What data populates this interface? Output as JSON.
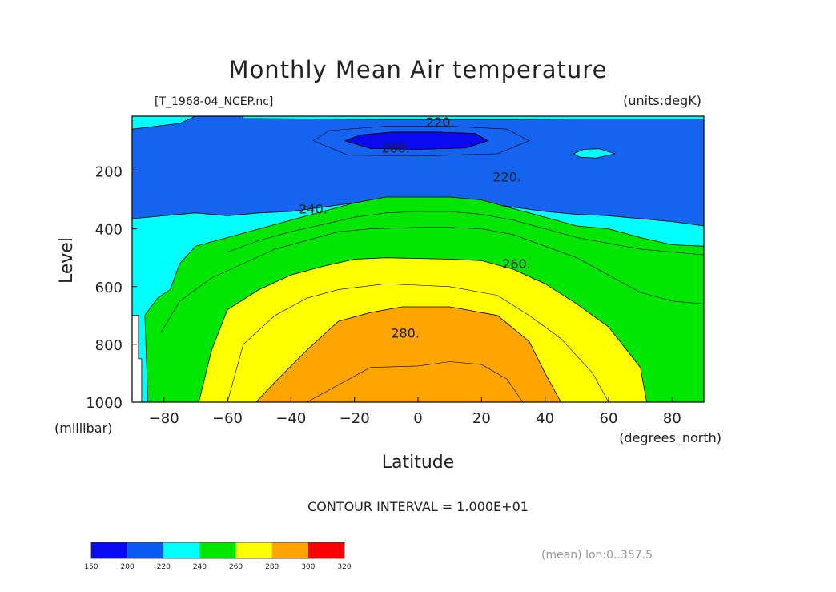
{
  "chart_data": {
    "type": "contour",
    "title": "Monthly Mean Air temperature",
    "file_label": "[T_1968-04_NCEP.nc]",
    "units_label": "(units:degK)",
    "xlabel": "Latitude",
    "x_unit_label": "(degrees_north)",
    "ylabel": "Level",
    "y_unit_label": "(millibar)",
    "xlim": [
      -90,
      90
    ],
    "ylim": [
      1000,
      10
    ],
    "x_ticks": [
      -80,
      -60,
      -40,
      -20,
      0,
      20,
      40,
      60,
      80
    ],
    "x_tick_labels": [
      "−80",
      "−60",
      "−40",
      "−20",
      "0",
      "20",
      "40",
      "60",
      "80"
    ],
    "y_ticks": [
      200,
      400,
      600,
      800,
      1000
    ],
    "y_tick_labels": [
      "200",
      "400",
      "600",
      "800",
      "1000"
    ],
    "contour_interval_label": "CONTOUR INTERVAL = 1.000E+01",
    "mean_label": "(mean) lon:0..357.5",
    "contour_labels": [
      {
        "text": "220.",
        "lat": 7,
        "level": 30
      },
      {
        "text": "200.",
        "lat": -7,
        "level": 120
      },
      {
        "text": "220.",
        "lat": 28,
        "level": 220
      },
      {
        "text": "240.",
        "lat": -33,
        "level": 330
      },
      {
        "text": "260.",
        "lat": 31,
        "level": 520
      },
      {
        "text": "280.",
        "lat": -4,
        "level": 760
      }
    ],
    "levels": [
      150,
      200,
      220,
      240,
      260,
      280,
      300,
      320
    ],
    "colorbar": {
      "ticks": [
        "150",
        "200",
        "220",
        "240",
        "260",
        "280",
        "300",
        "320"
      ],
      "colors": [
        "#0a0af0",
        "#0a5af0",
        "#00ffff",
        "#00e600",
        "#ffff00",
        "#ffa500",
        "#ff0000"
      ]
    },
    "fill_regions": [
      {
        "band": "200-220",
        "color": "#1464f0",
        "points": [
          [
            -90,
            10
          ],
          [
            90,
            10
          ],
          [
            90,
            390
          ],
          [
            80,
            375
          ],
          [
            70,
            365
          ],
          [
            60,
            355
          ],
          [
            50,
            350
          ],
          [
            40,
            340
          ],
          [
            30,
            325
          ],
          [
            20,
            310
          ],
          [
            10,
            300
          ],
          [
            0,
            300
          ],
          [
            -10,
            300
          ],
          [
            -20,
            310
          ],
          [
            -30,
            325
          ],
          [
            -40,
            340
          ],
          [
            -50,
            345
          ],
          [
            -60,
            355
          ],
          [
            -70,
            345
          ],
          [
            -80,
            355
          ],
          [
            -90,
            365
          ]
        ]
      },
      {
        "band": "220-240 (top)",
        "color": "#00ffff",
        "points": [
          [
            -55,
            10
          ],
          [
            90,
            10
          ],
          [
            90,
            20
          ],
          [
            70,
            20
          ],
          [
            50,
            20
          ],
          [
            30,
            22
          ],
          [
            10,
            22
          ],
          [
            -10,
            22
          ],
          [
            -30,
            20
          ],
          [
            -55,
            18
          ]
        ]
      },
      {
        "band": "220-240 (corner)",
        "color": "#00ffff",
        "points": [
          [
            -90,
            10
          ],
          [
            -70,
            10
          ],
          [
            -75,
            35
          ],
          [
            -90,
            55
          ]
        ]
      },
      {
        "band": "220-240",
        "color": "#00ffff",
        "points": [
          [
            -90,
            365
          ],
          [
            -80,
            355
          ],
          [
            -70,
            345
          ],
          [
            -60,
            355
          ],
          [
            -50,
            345
          ],
          [
            -40,
            340
          ],
          [
            -30,
            325
          ],
          [
            -20,
            310
          ],
          [
            -10,
            300
          ],
          [
            0,
            300
          ],
          [
            10,
            300
          ],
          [
            20,
            310
          ],
          [
            30,
            325
          ],
          [
            40,
            340
          ],
          [
            50,
            350
          ],
          [
            60,
            355
          ],
          [
            70,
            365
          ],
          [
            80,
            375
          ],
          [
            90,
            390
          ],
          [
            90,
            1000
          ],
          [
            -87,
            1000
          ],
          [
            -87,
            850
          ],
          [
            -88,
            850
          ],
          [
            -88,
            700
          ],
          [
            -90,
            700
          ]
        ]
      },
      {
        "band": "240-260",
        "color": "#00e600",
        "points": [
          [
            -85,
            1000
          ],
          [
            -86,
            700
          ],
          [
            -82,
            640
          ],
          [
            -78,
            610
          ],
          [
            -75,
            520
          ],
          [
            -70,
            460
          ],
          [
            -60,
            430
          ],
          [
            -50,
            400
          ],
          [
            -40,
            370
          ],
          [
            -30,
            340
          ],
          [
            -20,
            310
          ],
          [
            -10,
            290
          ],
          [
            10,
            290
          ],
          [
            20,
            300
          ],
          [
            30,
            330
          ],
          [
            40,
            360
          ],
          [
            50,
            390
          ],
          [
            60,
            400
          ],
          [
            70,
            430
          ],
          [
            80,
            455
          ],
          [
            90,
            460
          ],
          [
            90,
            1000
          ]
        ]
      },
      {
        "band": "260-280",
        "color": "#ffff00",
        "points": [
          [
            -69,
            1000
          ],
          [
            -65,
            820
          ],
          [
            -60,
            680
          ],
          [
            -50,
            610
          ],
          [
            -40,
            560
          ],
          [
            -30,
            530
          ],
          [
            -20,
            505
          ],
          [
            -10,
            500
          ],
          [
            10,
            505
          ],
          [
            20,
            510
          ],
          [
            30,
            540
          ],
          [
            40,
            590
          ],
          [
            50,
            660
          ],
          [
            60,
            740
          ],
          [
            70,
            880
          ],
          [
            72,
            1000
          ]
        ]
      },
      {
        "band": "280-300",
        "color": "#ffa500",
        "points": [
          [
            -51,
            1000
          ],
          [
            -45,
            930
          ],
          [
            -35,
            820
          ],
          [
            -25,
            720
          ],
          [
            -15,
            690
          ],
          [
            -5,
            670
          ],
          [
            10,
            670
          ],
          [
            25,
            700
          ],
          [
            35,
            790
          ],
          [
            40,
            900
          ],
          [
            45,
            1000
          ]
        ]
      },
      {
        "band": "190-200",
        "color": "#0a0af0",
        "points": [
          [
            -23,
            95
          ],
          [
            -18,
            75
          ],
          [
            -8,
            65
          ],
          [
            5,
            65
          ],
          [
            18,
            70
          ],
          [
            22,
            95
          ],
          [
            15,
            120
          ],
          [
            0,
            125
          ],
          [
            -15,
            122
          ]
        ]
      },
      {
        "band": "220-230 blob",
        "color": "#00ffff",
        "points": [
          [
            49,
            140
          ],
          [
            52,
            125
          ],
          [
            57,
            123
          ],
          [
            62,
            140
          ],
          [
            56,
            155
          ],
          [
            51,
            152
          ]
        ]
      }
    ],
    "contour_lines": [
      [
        [
          -23,
          95
        ],
        [
          -18,
          75
        ],
        [
          -8,
          65
        ],
        [
          5,
          65
        ],
        [
          18,
          70
        ],
        [
          22,
          95
        ],
        [
          15,
          120
        ],
        [
          0,
          125
        ],
        [
          -15,
          122
        ],
        [
          -23,
          95
        ]
      ],
      [
        [
          -33,
          95
        ],
        [
          -28,
          60
        ],
        [
          -10,
          45
        ],
        [
          10,
          45
        ],
        [
          28,
          55
        ],
        [
          35,
          95
        ],
        [
          25,
          140
        ],
        [
          0,
          148
        ],
        [
          -22,
          145
        ],
        [
          -33,
          95
        ]
      ],
      [
        [
          -60,
          480
        ],
        [
          -50,
          440
        ],
        [
          -40,
          410
        ],
        [
          -30,
          385
        ],
        [
          -20,
          360
        ],
        [
          -10,
          345
        ],
        [
          0,
          340
        ],
        [
          10,
          340
        ],
        [
          20,
          350
        ],
        [
          30,
          370
        ],
        [
          40,
          400
        ],
        [
          50,
          430
        ],
        [
          60,
          450
        ],
        [
          70,
          470
        ],
        [
          80,
          480
        ],
        [
          90,
          490
        ]
      ],
      [
        [
          -81,
          760
        ],
        [
          -75,
          650
        ],
        [
          -65,
          570
        ],
        [
          -55,
          520
        ],
        [
          -45,
          470
        ],
        [
          -35,
          440
        ],
        [
          -25,
          410
        ],
        [
          -15,
          400
        ],
        [
          0,
          395
        ],
        [
          10,
          395
        ],
        [
          20,
          400
        ],
        [
          30,
          420
        ],
        [
          40,
          460
        ],
        [
          50,
          500
        ],
        [
          60,
          560
        ],
        [
          70,
          620
        ],
        [
          80,
          650
        ],
        [
          90,
          660
        ]
      ],
      [
        [
          -60,
          1000
        ],
        [
          -55,
          800
        ],
        [
          -45,
          700
        ],
        [
          -35,
          640
        ],
        [
          -25,
          610
        ],
        [
          -10,
          590
        ],
        [
          10,
          600
        ],
        [
          25,
          630
        ],
        [
          35,
          700
        ],
        [
          45,
          780
        ],
        [
          55,
          900
        ],
        [
          60,
          1000
        ]
      ],
      [
        [
          -35,
          1000
        ],
        [
          -25,
          940
        ],
        [
          -15,
          880
        ],
        [
          0,
          875
        ],
        [
          10,
          860
        ],
        [
          20,
          870
        ],
        [
          28,
          920
        ],
        [
          33,
          1000
        ]
      ]
    ]
  }
}
